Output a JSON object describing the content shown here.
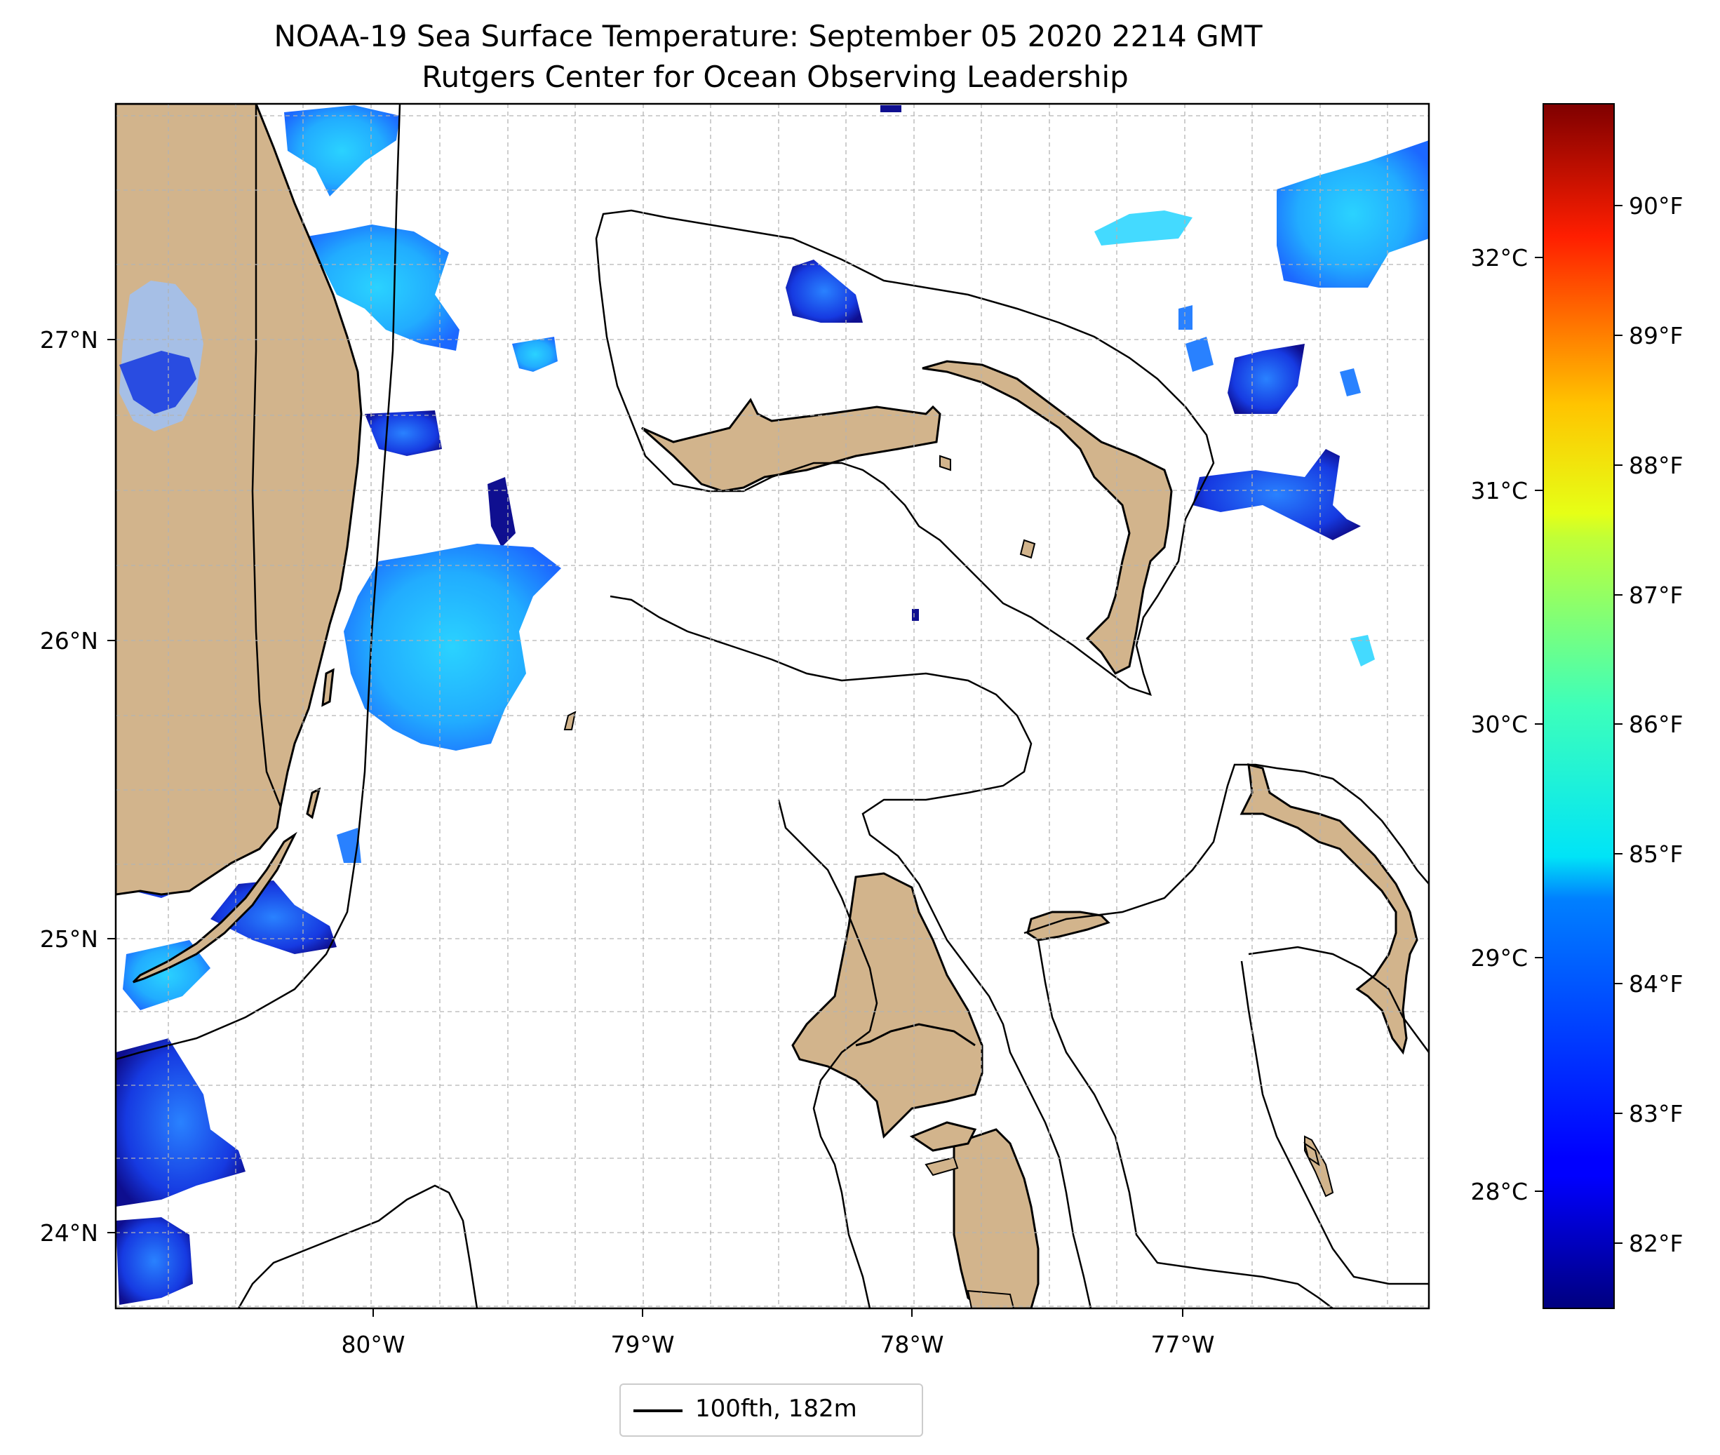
{
  "title": {
    "line1": "NOAA-19 Sea Surface Temperature: September 05 2020 2214 GMT",
    "line2": "Rutgers Center for Ocean Observing Leadership"
  },
  "axes": {
    "lon_ticks": [
      "80°W",
      "79°W",
      "78°W",
      "77°W"
    ],
    "lat_ticks": [
      "27°N",
      "26°N",
      "25°N",
      "24°N"
    ],
    "lon_range": [
      -80.95,
      -76.1
    ],
    "lat_range": [
      23.75,
      27.8
    ],
    "grid": true
  },
  "colorbar": {
    "colormap": "jet",
    "celsius_ticks": [
      "32°C",
      "31°C",
      "30°C",
      "29°C",
      "28°C"
    ],
    "fahrenheit_ticks": [
      "90°F",
      "89°F",
      "88°F",
      "87°F",
      "86°F",
      "85°F",
      "84°F",
      "83°F",
      "82°F"
    ],
    "range_f": [
      81.5,
      90.7
    ]
  },
  "legend": {
    "label": "100fth, 182m"
  },
  "colors": {
    "land": "#d2b48c",
    "lake": "#a6bfe6",
    "contour": "#000000",
    "grid": "#bbbbbb"
  }
}
